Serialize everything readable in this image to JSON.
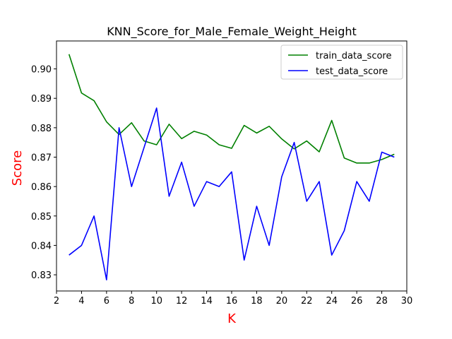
{
  "chart_data": {
    "type": "line",
    "title": "KNN_Score_for_Male_Female_Weight_Height",
    "xlabel": "K",
    "ylabel": "Score",
    "label_color": "#ff0000",
    "xlim": [
      2,
      30
    ],
    "ylim": [
      0.8245,
      0.9095
    ],
    "xticks": [
      2,
      4,
      6,
      8,
      10,
      12,
      14,
      16,
      18,
      20,
      22,
      24,
      26,
      28,
      30
    ],
    "yticks": [
      0.83,
      0.84,
      0.85,
      0.86,
      0.87,
      0.88,
      0.89,
      0.9
    ],
    "ytick_labels": [
      "0.83",
      "0.84",
      "0.85",
      "0.86",
      "0.87",
      "0.88",
      "0.89",
      "0.90"
    ],
    "grid": false,
    "legend_position": "top-right",
    "x": [
      3,
      4,
      5,
      6,
      7,
      8,
      9,
      10,
      11,
      12,
      13,
      14,
      15,
      16,
      17,
      18,
      19,
      20,
      21,
      22,
      23,
      24,
      25,
      26,
      27,
      28,
      29
    ],
    "series": [
      {
        "name": "train_data_score",
        "color": "#008000",
        "values": [
          0.905,
          0.8918,
          0.8892,
          0.882,
          0.8777,
          0.8817,
          0.8755,
          0.8742,
          0.8812,
          0.8763,
          0.8788,
          0.8775,
          0.8742,
          0.873,
          0.8808,
          0.8782,
          0.8805,
          0.8762,
          0.8728,
          0.8755,
          0.8718,
          0.8825,
          0.8697,
          0.868,
          0.868,
          0.8692,
          0.871
        ]
      },
      {
        "name": "test_data_score",
        "color": "#0000ff",
        "values": [
          0.8367,
          0.84,
          0.85,
          0.8283,
          0.88,
          0.86,
          0.8733,
          0.8867,
          0.8567,
          0.8683,
          0.8533,
          0.8617,
          0.86,
          0.865,
          0.835,
          0.8533,
          0.84,
          0.8633,
          0.875,
          0.855,
          0.8617,
          0.8367,
          0.845,
          0.8617,
          0.855,
          0.8717,
          0.87
        ]
      }
    ]
  }
}
